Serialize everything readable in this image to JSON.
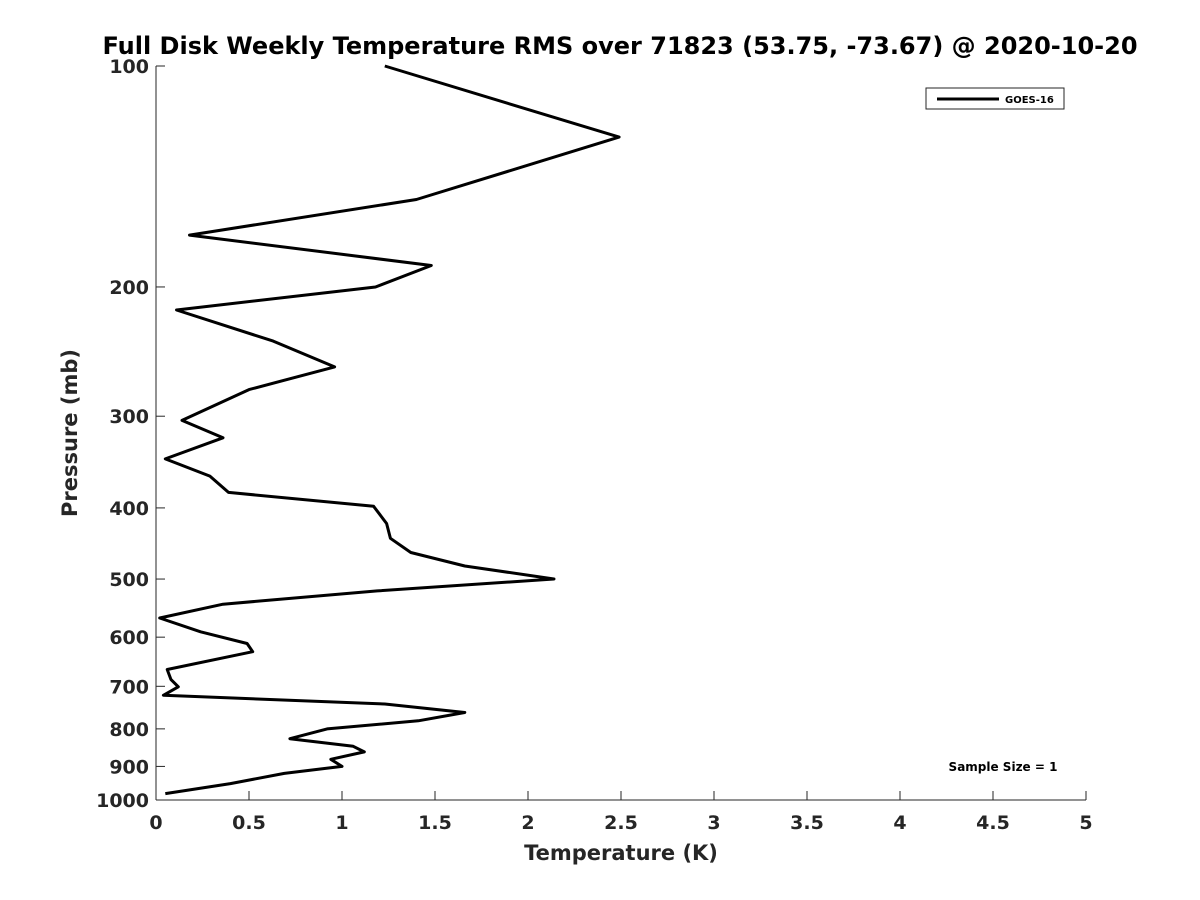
{
  "chart_data": {
    "type": "line",
    "title": "Full Disk Weekly Temperature RMS over 71823 (53.75, -73.67) @ 2020-10-20",
    "xlabel": "Temperature (K)",
    "ylabel": "Pressure (mb)",
    "xlim": [
      0,
      5
    ],
    "ylim": [
      100,
      1000
    ],
    "y_scale": "log",
    "y_reversed": true,
    "x_ticks": [
      "0",
      "0.5",
      "1",
      "1.5",
      "2",
      "2.5",
      "3",
      "3.5",
      "4",
      "4.5",
      "5"
    ],
    "y_ticks": [
      "100",
      "200",
      "300",
      "400",
      "500",
      "600",
      "700",
      "800",
      "900",
      "1000"
    ],
    "grid": false,
    "legend_position": "top-right",
    "annotation": "Sample Size = 1",
    "series": [
      {
        "name": "GOES-16",
        "color": "#000000",
        "points": [
          [
            1.23,
            100
          ],
          [
            2.49,
            125
          ],
          [
            1.4,
            152
          ],
          [
            0.18,
            170
          ],
          [
            1.48,
            187
          ],
          [
            1.18,
            200
          ],
          [
            0.11,
            215
          ],
          [
            0.63,
            237
          ],
          [
            0.96,
            257
          ],
          [
            0.5,
            276
          ],
          [
            0.14,
            304
          ],
          [
            0.36,
            321
          ],
          [
            0.05,
            343
          ],
          [
            0.29,
            362
          ],
          [
            0.39,
            381
          ],
          [
            1.17,
            398
          ],
          [
            1.24,
            420
          ],
          [
            1.26,
            440
          ],
          [
            1.37,
            460
          ],
          [
            1.66,
            480
          ],
          [
            2.14,
            500
          ],
          [
            1.19,
            519
          ],
          [
            0.36,
            541
          ],
          [
            0.02,
            565
          ],
          [
            0.24,
            590
          ],
          [
            0.49,
            612
          ],
          [
            0.52,
            628
          ],
          [
            0.06,
            664
          ],
          [
            0.08,
            685
          ],
          [
            0.12,
            701
          ],
          [
            0.04,
            720
          ],
          [
            1.23,
            740
          ],
          [
            1.66,
            760
          ],
          [
            1.41,
            780
          ],
          [
            0.92,
            800
          ],
          [
            0.72,
            825
          ],
          [
            1.06,
            845
          ],
          [
            1.12,
            860
          ],
          [
            0.94,
            880
          ],
          [
            1.0,
            900
          ],
          [
            0.69,
            920
          ],
          [
            0.4,
            950
          ],
          [
            0.05,
            980
          ]
        ]
      }
    ]
  }
}
